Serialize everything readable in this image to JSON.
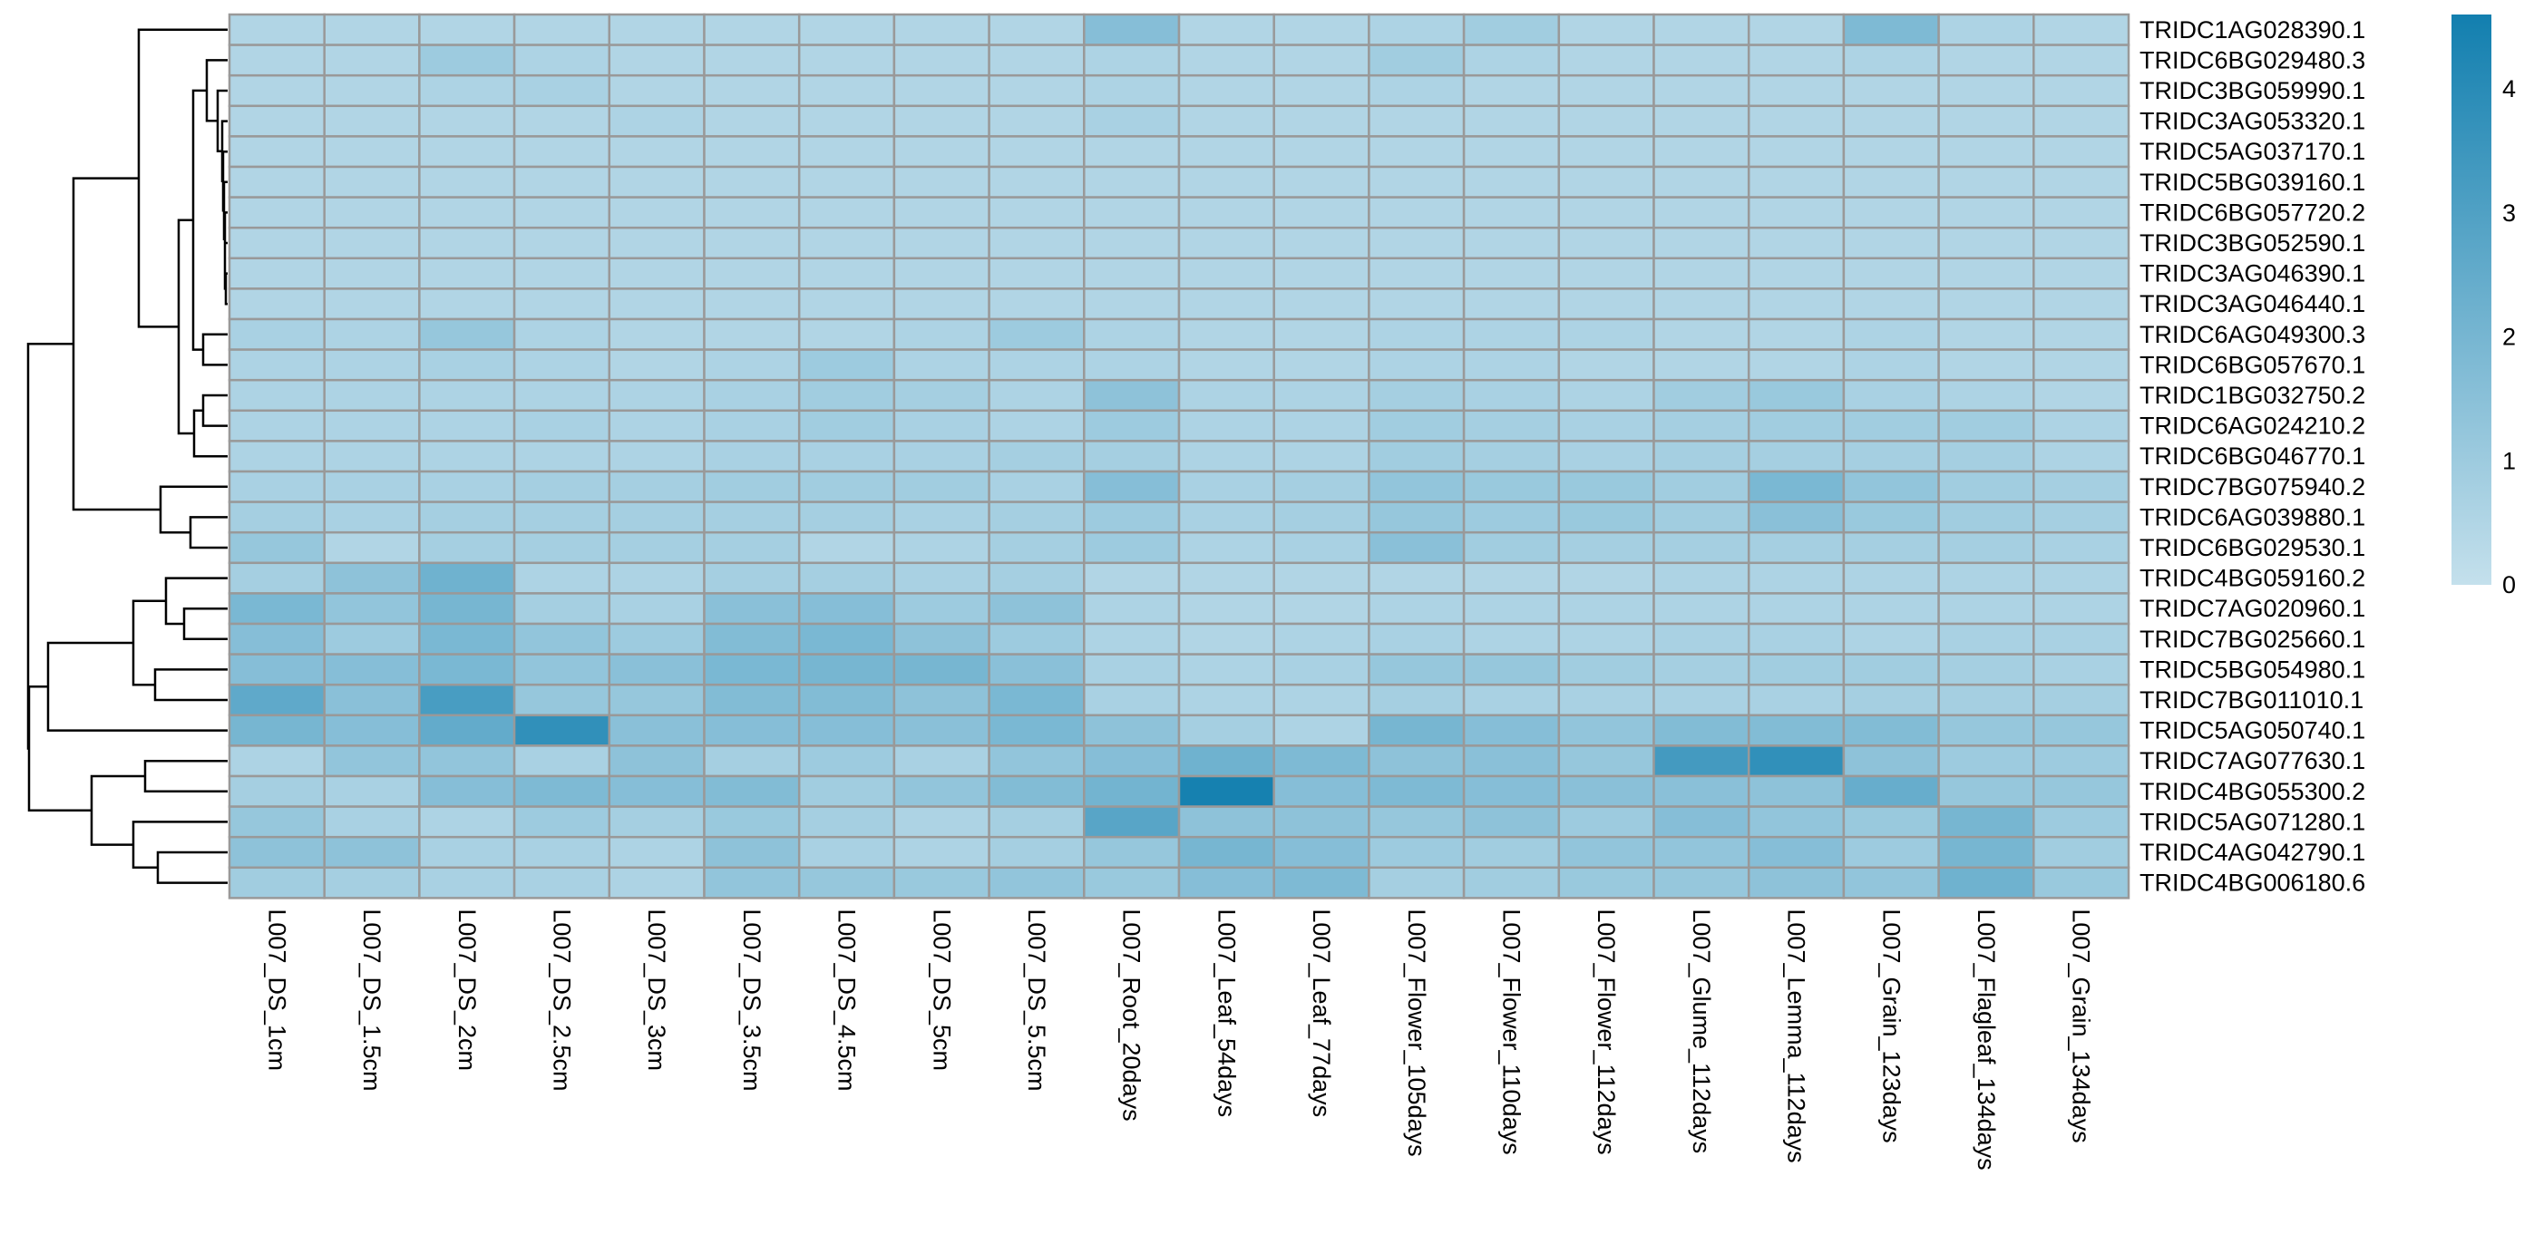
{
  "chart_data": {
    "type": "heatmap",
    "title": "",
    "xlabel": "",
    "ylabel": "",
    "columns": [
      "L007_DS_1cm",
      "L007_DS_1.5cm",
      "L007_DS_2cm",
      "L007_DS_2.5cm",
      "L007_DS_3cm",
      "L007_DS_3.5cm",
      "L007_DS_4.5cm",
      "L007_DS_5cm",
      "L007_DS_5.5cm",
      "L007_Root_20days",
      "L007_Leaf_54days",
      "L007_Leaf_77days",
      "L007_Flower_105days",
      "L007_Flower_110days",
      "L007_Flower_112days",
      "L007_Glume_112days",
      "L007_Lemma_112days",
      "L007_Grain_123days",
      "L007_Flagleaf_134days",
      "L007_Grain_134days"
    ],
    "rows": [
      "TRIDC1AG028390.1",
      "TRIDC6BG029480.3",
      "TRIDC3BG059990.1",
      "TRIDC3AG053320.1",
      "TRIDC5AG037170.1",
      "TRIDC5BG039160.1",
      "TRIDC6BG057720.2",
      "TRIDC3BG052590.1",
      "TRIDC3AG046390.1",
      "TRIDC3AG046440.1",
      "TRIDC6AG049300.3",
      "TRIDC6BG057670.1",
      "TRIDC1BG032750.2",
      "TRIDC6AG024210.2",
      "TRIDC6BG046770.1",
      "TRIDC7BG075940.2",
      "TRIDC6AG039880.1",
      "TRIDC6BG029530.1",
      "TRIDC4BG059160.2",
      "TRIDC7AG020960.1",
      "TRIDC7BG025660.1",
      "TRIDC5BG054980.1",
      "TRIDC7BG011010.1",
      "TRIDC5AG050740.1",
      "TRIDC7AG077630.1",
      "TRIDC4BG055300.2",
      "TRIDC5AG071280.1",
      "TRIDC4AG042790.1",
      "TRIDC4BG006180.6"
    ],
    "values": [
      [
        0.5,
        0.5,
        0.5,
        0.5,
        0.5,
        0.5,
        0.5,
        0.5,
        0.5,
        1.6,
        0.5,
        0.5,
        0.6,
        0.9,
        0.5,
        0.5,
        0.5,
        1.8,
        0.6,
        0.5
      ],
      [
        0.5,
        0.5,
        1.0,
        0.6,
        0.5,
        0.5,
        0.5,
        0.5,
        0.5,
        0.6,
        0.5,
        0.5,
        0.9,
        0.6,
        0.5,
        0.5,
        0.5,
        0.6,
        0.5,
        0.5
      ],
      [
        0.5,
        0.5,
        0.6,
        0.7,
        0.5,
        0.5,
        0.5,
        0.5,
        0.5,
        0.6,
        0.5,
        0.5,
        0.6,
        0.5,
        0.5,
        0.5,
        0.5,
        0.5,
        0.5,
        0.5
      ],
      [
        0.5,
        0.5,
        0.5,
        0.5,
        0.6,
        0.5,
        0.5,
        0.5,
        0.5,
        0.7,
        0.5,
        0.5,
        0.5,
        0.5,
        0.5,
        0.5,
        0.5,
        0.5,
        0.5,
        0.5
      ],
      [
        0.5,
        0.5,
        0.5,
        0.5,
        0.5,
        0.5,
        0.5,
        0.5,
        0.5,
        0.5,
        0.5,
        0.5,
        0.5,
        0.5,
        0.5,
        0.5,
        0.5,
        0.5,
        0.5,
        0.5
      ],
      [
        0.5,
        0.5,
        0.5,
        0.5,
        0.5,
        0.5,
        0.5,
        0.5,
        0.5,
        0.5,
        0.5,
        0.5,
        0.5,
        0.5,
        0.5,
        0.5,
        0.5,
        0.5,
        0.5,
        0.5
      ],
      [
        0.5,
        0.5,
        0.5,
        0.5,
        0.5,
        0.5,
        0.5,
        0.5,
        0.5,
        0.5,
        0.5,
        0.5,
        0.5,
        0.5,
        0.5,
        0.5,
        0.5,
        0.5,
        0.5,
        0.5
      ],
      [
        0.5,
        0.5,
        0.5,
        0.5,
        0.5,
        0.5,
        0.5,
        0.5,
        0.5,
        0.5,
        0.5,
        0.5,
        0.5,
        0.5,
        0.5,
        0.5,
        0.5,
        0.5,
        0.5,
        0.5
      ],
      [
        0.5,
        0.5,
        0.5,
        0.5,
        0.5,
        0.5,
        0.5,
        0.5,
        0.5,
        0.5,
        0.5,
        0.5,
        0.5,
        0.5,
        0.5,
        0.5,
        0.5,
        0.5,
        0.5,
        0.5
      ],
      [
        0.5,
        0.5,
        0.5,
        0.5,
        0.5,
        0.5,
        0.5,
        0.5,
        0.5,
        0.5,
        0.5,
        0.5,
        0.5,
        0.5,
        0.5,
        0.5,
        0.5,
        0.5,
        0.5,
        0.5
      ],
      [
        0.7,
        0.6,
        1.2,
        0.6,
        0.5,
        0.5,
        0.5,
        0.6,
        1.0,
        0.6,
        0.5,
        0.5,
        0.6,
        0.6,
        0.6,
        0.5,
        0.5,
        0.6,
        0.5,
        0.5
      ],
      [
        0.6,
        0.6,
        0.7,
        0.6,
        0.5,
        0.6,
        1.0,
        0.6,
        0.6,
        0.6,
        0.5,
        0.5,
        0.6,
        0.6,
        0.5,
        0.5,
        0.5,
        0.6,
        0.5,
        0.5
      ],
      [
        0.6,
        0.6,
        0.6,
        0.6,
        0.6,
        0.7,
        0.9,
        0.8,
        0.6,
        1.4,
        0.6,
        0.6,
        0.8,
        0.7,
        0.6,
        0.9,
        1.1,
        0.7,
        0.6,
        0.5
      ],
      [
        0.6,
        0.6,
        0.6,
        0.7,
        0.6,
        0.7,
        0.9,
        0.7,
        0.6,
        1.0,
        0.6,
        0.6,
        0.9,
        0.8,
        0.7,
        0.8,
        0.9,
        0.9,
        0.9,
        0.6
      ],
      [
        0.6,
        0.6,
        0.6,
        0.6,
        0.6,
        0.7,
        0.7,
        0.7,
        0.8,
        0.8,
        0.6,
        0.6,
        0.9,
        0.8,
        0.7,
        0.8,
        0.8,
        0.8,
        0.8,
        0.6
      ],
      [
        0.7,
        0.7,
        0.7,
        0.8,
        0.8,
        0.9,
        0.9,
        0.9,
        0.7,
        1.6,
        0.7,
        0.8,
        1.3,
        1.1,
        1.1,
        0.9,
        1.9,
        1.3,
        0.9,
        0.8
      ],
      [
        0.8,
        0.7,
        0.8,
        0.8,
        0.8,
        0.8,
        0.8,
        0.7,
        0.8,
        1.0,
        0.7,
        0.8,
        1.2,
        1.0,
        1.1,
        0.9,
        1.5,
        1.1,
        0.9,
        0.8
      ],
      [
        1.2,
        0.5,
        0.8,
        0.8,
        0.8,
        0.8,
        0.5,
        0.6,
        0.8,
        1.0,
        0.6,
        0.7,
        1.5,
        0.9,
        0.8,
        0.8,
        0.8,
        0.8,
        0.8,
        0.7
      ],
      [
        0.8,
        1.4,
        2.2,
        0.6,
        0.6,
        0.8,
        0.8,
        0.7,
        0.8,
        0.5,
        0.5,
        0.5,
        0.5,
        0.5,
        0.5,
        0.6,
        0.6,
        0.6,
        0.6,
        0.6
      ],
      [
        1.9,
        1.3,
        2.0,
        0.8,
        0.7,
        1.5,
        1.6,
        1.0,
        1.4,
        0.6,
        0.5,
        0.5,
        0.6,
        0.6,
        0.6,
        0.6,
        0.6,
        0.6,
        0.6,
        0.6
      ],
      [
        1.6,
        1.0,
        1.9,
        1.3,
        1.0,
        1.7,
        1.9,
        1.4,
        1.0,
        0.6,
        0.5,
        0.6,
        0.7,
        0.6,
        0.6,
        0.7,
        0.7,
        0.6,
        0.7,
        0.7
      ],
      [
        1.6,
        1.6,
        1.9,
        1.3,
        1.5,
        1.9,
        2.0,
        2.0,
        1.5,
        0.7,
        0.6,
        0.7,
        1.2,
        1.2,
        0.9,
        0.8,
        0.9,
        0.9,
        0.8,
        0.7
      ],
      [
        2.6,
        1.5,
        3.2,
        1.2,
        1.2,
        1.7,
        1.7,
        1.4,
        1.9,
        0.7,
        0.6,
        0.6,
        0.8,
        0.7,
        0.7,
        0.7,
        0.7,
        0.8,
        0.8,
        0.8
      ],
      [
        2.0,
        1.6,
        2.5,
        3.8,
        1.5,
        1.6,
        1.6,
        1.5,
        1.9,
        1.4,
        0.8,
        0.6,
        2.0,
        1.6,
        1.3,
        1.7,
        1.7,
        1.7,
        1.2,
        1.2
      ],
      [
        0.6,
        1.3,
        1.3,
        0.7,
        1.4,
        0.8,
        1.0,
        0.7,
        1.3,
        1.6,
        2.2,
        1.8,
        1.4,
        1.5,
        1.2,
        3.3,
        3.8,
        1.4,
        1.0,
        1.0
      ],
      [
        0.8,
        0.7,
        1.6,
        1.8,
        1.6,
        1.7,
        0.9,
        1.3,
        1.7,
        2.1,
        4.5,
        1.6,
        1.8,
        1.6,
        1.5,
        1.5,
        1.4,
        2.4,
        1.2,
        1.2
      ],
      [
        1.2,
        0.7,
        0.6,
        1.0,
        0.8,
        1.1,
        0.8,
        0.6,
        0.8,
        2.8,
        1.4,
        1.4,
        1.2,
        1.4,
        1.0,
        1.6,
        1.3,
        1.1,
        2.0,
        1.0
      ],
      [
        1.4,
        1.4,
        0.7,
        0.7,
        0.6,
        1.4,
        0.7,
        0.6,
        0.8,
        1.2,
        2.0,
        1.6,
        1.0,
        0.9,
        1.3,
        1.3,
        1.6,
        1.0,
        2.0,
        0.9
      ],
      [
        0.9,
        0.8,
        0.7,
        0.7,
        0.6,
        1.3,
        1.2,
        1.1,
        1.3,
        1.1,
        1.6,
        1.8,
        0.8,
        0.9,
        1.1,
        1.2,
        1.4,
        1.3,
        2.2,
        1.1
      ]
    ],
    "color_scale": {
      "min": 0,
      "max": 4.6,
      "low_color": "#C4E0EC",
      "high_color": "#127FAF",
      "ticks": [
        0,
        1,
        2,
        3,
        4
      ]
    },
    "row_dendrogram_shown": true,
    "cell_border_color": "#999999"
  }
}
